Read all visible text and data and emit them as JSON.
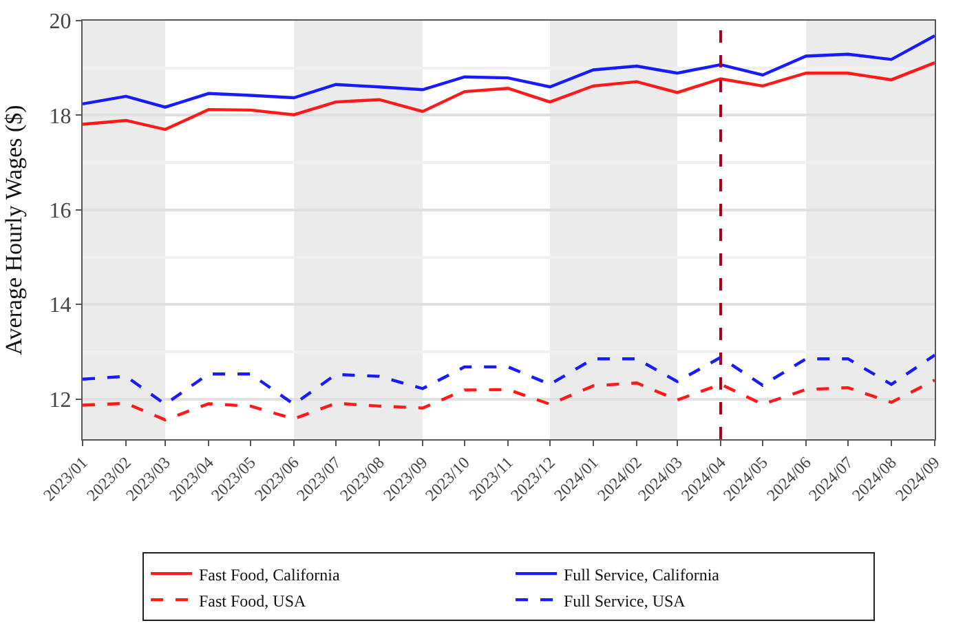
{
  "chart_data": {
    "type": "line",
    "ylabel": "Average Hourly Wages ($)",
    "x": [
      "2023-01",
      "2023-02",
      "2023-03",
      "2023-04",
      "2023-05",
      "2023-06",
      "2023-07",
      "2023-08",
      "2023-09",
      "2023-10",
      "2023-11",
      "2023-12",
      "2024-01",
      "2024-02",
      "2024-03",
      "2024-04",
      "2024-05",
      "2024-06",
      "2024-07",
      "2024-08",
      "2024-09"
    ],
    "series": [
      {
        "name": "Fast Food, California",
        "color": "#ff1a1a",
        "line_style": "solid",
        "values": [
          17.81,
          17.89,
          17.7,
          18.12,
          18.11,
          18.01,
          18.28,
          18.33,
          18.08,
          18.5,
          18.57,
          18.28,
          18.62,
          18.71,
          18.48,
          18.77,
          18.62,
          18.89,
          18.89,
          18.75,
          19.11
        ]
      },
      {
        "name": "Full Service, California",
        "color": "#1a1aff",
        "line_style": "solid",
        "values": [
          18.24,
          18.4,
          18.17,
          18.46,
          18.42,
          18.37,
          18.65,
          18.6,
          18.54,
          18.81,
          18.79,
          18.6,
          18.96,
          19.04,
          18.89,
          19.07,
          18.85,
          19.25,
          19.29,
          19.18,
          19.68
        ]
      },
      {
        "name": "Fast Food, USA",
        "color": "#ff1a1a",
        "line_style": "dashed",
        "values": [
          11.87,
          11.91,
          11.56,
          11.9,
          11.85,
          11.58,
          11.91,
          11.85,
          11.81,
          12.19,
          12.2,
          11.89,
          12.28,
          12.34,
          11.98,
          12.31,
          11.89,
          12.2,
          12.24,
          11.93,
          12.4
        ]
      },
      {
        "name": "Full Service, USA",
        "color": "#1a1aff",
        "line_style": "dashed",
        "values": [
          12.42,
          12.48,
          11.89,
          12.53,
          12.53,
          11.89,
          12.52,
          12.48,
          12.22,
          12.68,
          12.68,
          12.31,
          12.85,
          12.85,
          12.37,
          12.88,
          12.29,
          12.85,
          12.85,
          12.31,
          12.93
        ]
      }
    ],
    "xlim": [
      "2023-01",
      "2024-09"
    ],
    "xticks": [
      {
        "value": "2023-01",
        "label": "2023/01"
      },
      {
        "value": "2023-02",
        "label": "2023/02"
      },
      {
        "value": "2023-03",
        "label": "2023/03"
      },
      {
        "value": "2023-04",
        "label": "2023/04"
      },
      {
        "value": "2023-05",
        "label": "2023/05"
      },
      {
        "value": "2023-06",
        "label": "2023/06"
      },
      {
        "value": "2023-07",
        "label": "2023/07"
      },
      {
        "value": "2023-08",
        "label": "2023/08"
      },
      {
        "value": "2023-09",
        "label": "2023/09"
      },
      {
        "value": "2023-10",
        "label": "2023/10"
      },
      {
        "value": "2023-11",
        "label": "2023/11"
      },
      {
        "value": "2023-12",
        "label": "2023/12"
      },
      {
        "value": "2024-01",
        "label": "2024/01"
      },
      {
        "value": "2024-02",
        "label": "2024/02"
      },
      {
        "value": "2024-03",
        "label": "2024/03"
      },
      {
        "value": "2024-04",
        "label": "2024/04"
      },
      {
        "value": "2024-05",
        "label": "2024/05"
      },
      {
        "value": "2024-06",
        "label": "2024/06"
      },
      {
        "value": "2024-07",
        "label": "2024/07"
      },
      {
        "value": "2024-08",
        "label": "2024/08"
      },
      {
        "value": "2024-09",
        "label": "2024/09"
      }
    ],
    "ylim": [
      11.15,
      20
    ],
    "yticks": [
      12,
      14,
      16,
      18,
      20
    ],
    "grid": "y",
    "legend": "bottom",
    "bands": [
      {
        "axis": "x",
        "from": "2023-01",
        "to": "2023-03",
        "color": "#ebebeb"
      },
      {
        "axis": "x",
        "from": "2023-06",
        "to": "2023-09",
        "color": "#ebebeb"
      },
      {
        "axis": "x",
        "from": "2023-12",
        "to": "2024-03",
        "color": "#ebebeb"
      },
      {
        "axis": "x",
        "from": "2024-06",
        "to": "2024-09",
        "color": "#ebebeb"
      }
    ],
    "ref_lines": [
      {
        "axis": "x",
        "value": "2024-04",
        "color": "#aa0022",
        "line_style": "dashed"
      }
    ]
  }
}
